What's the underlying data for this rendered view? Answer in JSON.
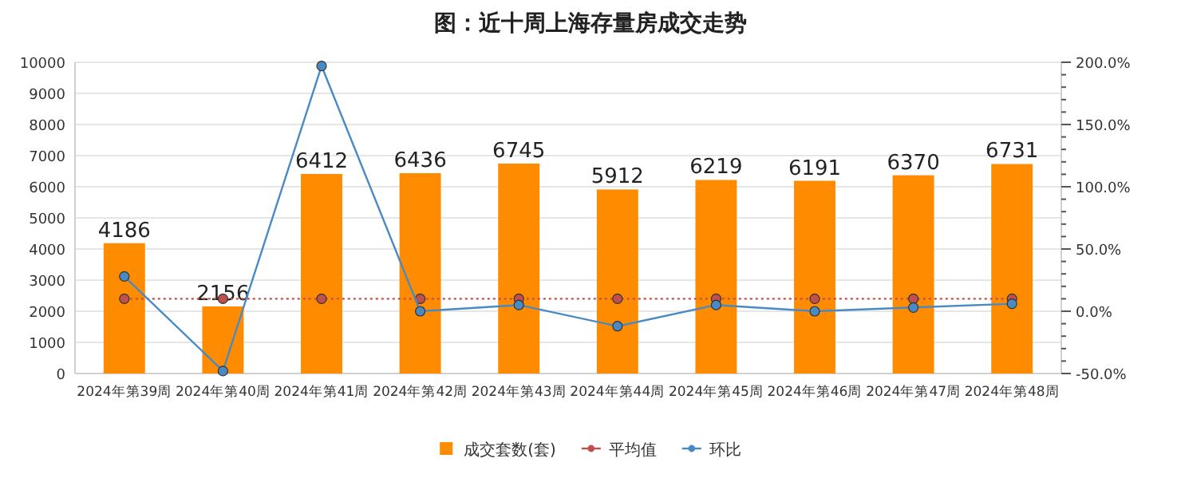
{
  "chart_data": {
    "type": "bar",
    "title": "图：近十周上海存量房成交走势",
    "categories": [
      "2024年第39周",
      "2024年第40周",
      "2024年第41周",
      "2024年第42周",
      "2024年第43周",
      "2024年第44周",
      "2024年第45周",
      "2024年第46周",
      "2024年第47周",
      "2024年第48周"
    ],
    "series": [
      {
        "name": "成交套数(套)",
        "color": "#ff8c00",
        "values": [
          4186,
          2156,
          6412,
          6436,
          6745,
          5912,
          6219,
          6191,
          6370,
          6731
        ],
        "value_labels": [
          "4186",
          "2156",
          "6412",
          "6436",
          "6745",
          "5912",
          "6219",
          "6191",
          "6370",
          "6731"
        ]
      },
      {
        "name": "平均值",
        "type": "line",
        "axis": "y2",
        "color": "#c0504d",
        "line_style": "dotted",
        "marker": "circle",
        "values": [
          10,
          10,
          10,
          10,
          10,
          10,
          10,
          10,
          10,
          10
        ]
      },
      {
        "name": "环比",
        "type": "line",
        "axis": "y2",
        "color": "#4a8ac4",
        "line_style": "solid",
        "marker": "circle",
        "values": [
          28,
          -48,
          197,
          0,
          5,
          -12,
          5,
          0,
          3,
          6
        ]
      }
    ],
    "ylim": [
      0,
      10000
    ],
    "yticks": [
      0,
      1000,
      2000,
      3000,
      4000,
      5000,
      6000,
      7000,
      8000,
      9000,
      10000
    ],
    "y2lim": [
      -50,
      200
    ],
    "y2ticks": [
      {
        "value": -50,
        "label": "-50.0%"
      },
      {
        "value": 0,
        "label": "0.0%"
      },
      {
        "value": 50,
        "label": "50.0%"
      },
      {
        "value": 100,
        "label": "100.0%"
      },
      {
        "value": 150,
        "label": "150.0%"
      },
      {
        "value": 200,
        "label": "200.0%"
      }
    ],
    "grid": "y",
    "legend": "bottom"
  }
}
